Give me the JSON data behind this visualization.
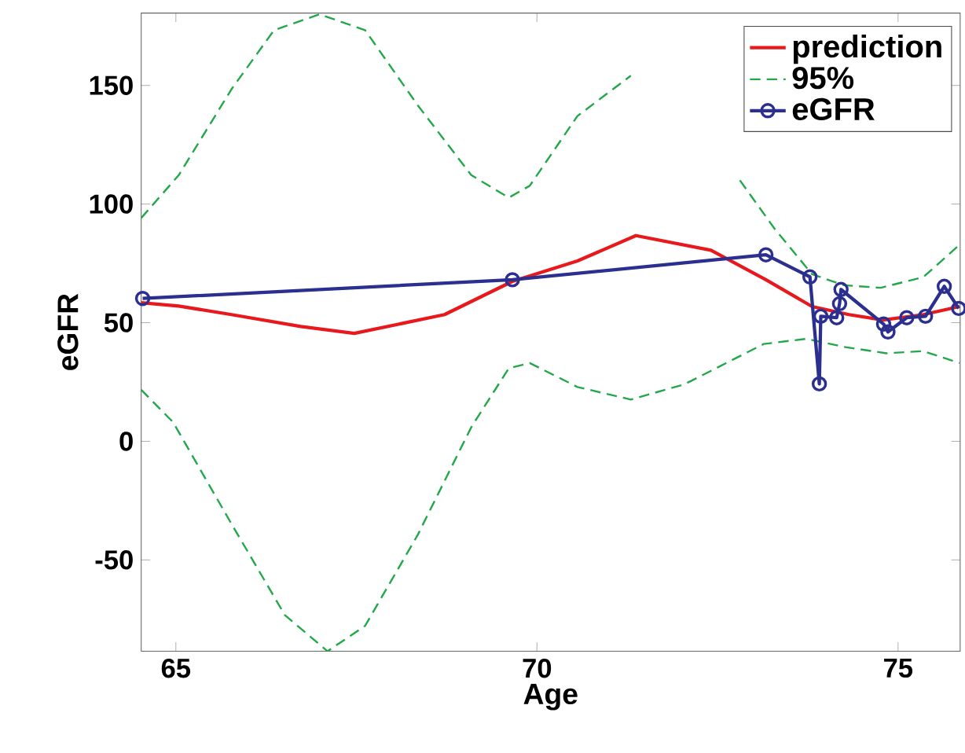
{
  "chart_data": {
    "type": "line",
    "xlabel": "Age",
    "ylabel": "eGFR",
    "xlim": [
      64.52,
      75.86
    ],
    "ylim": [
      -88.5,
      180.5
    ],
    "xticks": [
      65,
      70,
      75
    ],
    "yticks": [
      -50,
      0,
      50,
      100,
      150
    ],
    "grid": false,
    "legend": "top right",
    "series": [
      {
        "name": "prediction",
        "color": "#e8191c",
        "marker": "none",
        "line_style": "solid",
        "x": [
          64.52,
          65.04,
          65.77,
          66.73,
          67.47,
          68.72,
          69.66,
          70.56,
          71.37,
          72.41,
          73.17,
          73.81,
          74.32,
          74.79,
          75.35,
          75.85
        ],
        "values": [
          58.4,
          57.0,
          53.4,
          48.4,
          45.5,
          53.4,
          67.4,
          76.0,
          86.7,
          80.5,
          68.1,
          56.8,
          53.4,
          51.1,
          53.4,
          56.8
        ]
      },
      {
        "name": "95%",
        "color": "#22a84a",
        "marker": "none",
        "line_style": "dashed",
        "x": [
          64.52,
          65.04,
          65.77,
          66.36,
          66.99,
          67.62,
          68.35,
          69.09,
          69.61,
          69.9,
          70.56,
          71.3,
          72.0,
          72.81,
          73.29,
          73.81,
          74.25,
          74.76,
          75.35,
          75.85
        ],
        "values": [
          94.1,
          112.2,
          148.4,
          173.3,
          180.0,
          173.3,
          141.6,
          112.2,
          102.7,
          107.7,
          137.1,
          154.1,
          null,
          110.0,
          89.6,
          70.4,
          65.8,
          64.7,
          69.2,
          82.8
        ]
      },
      {
        "color": "#22a84a",
        "marker": "none",
        "line_style": "dashed",
        "x": [
          64.52,
          64.96,
          65.77,
          66.51,
          67.1,
          67.62,
          68.35,
          69.09,
          69.61,
          69.9,
          70.56,
          71.3,
          72.04,
          73.14,
          73.73,
          74.25,
          74.84,
          75.35,
          75.85
        ],
        "values": [
          21.7,
          8.1,
          -34.8,
          -73.3,
          -88.5,
          -77.8,
          -39.4,
          5.9,
          30.8,
          33.0,
          22.9,
          17.6,
          24.0,
          41.0,
          43.2,
          39.8,
          37.1,
          38.0,
          33.0
        ]
      },
      {
        "name": "eGFR",
        "color": "#2b2f8f",
        "marker": "circle",
        "line_style": "solid",
        "x": [
          64.54,
          69.66,
          73.17,
          73.78,
          73.91,
          73.93,
          74.15,
          74.19,
          74.21,
          74.8,
          74.86,
          75.12,
          75.38,
          75.64,
          75.84
        ],
        "values": [
          60.2,
          68.1,
          78.6,
          69.3,
          24.2,
          52.7,
          52.1,
          58.0,
          64.0,
          49.4,
          46.1,
          52.1,
          52.7,
          65.3,
          56.0
        ]
      }
    ]
  }
}
